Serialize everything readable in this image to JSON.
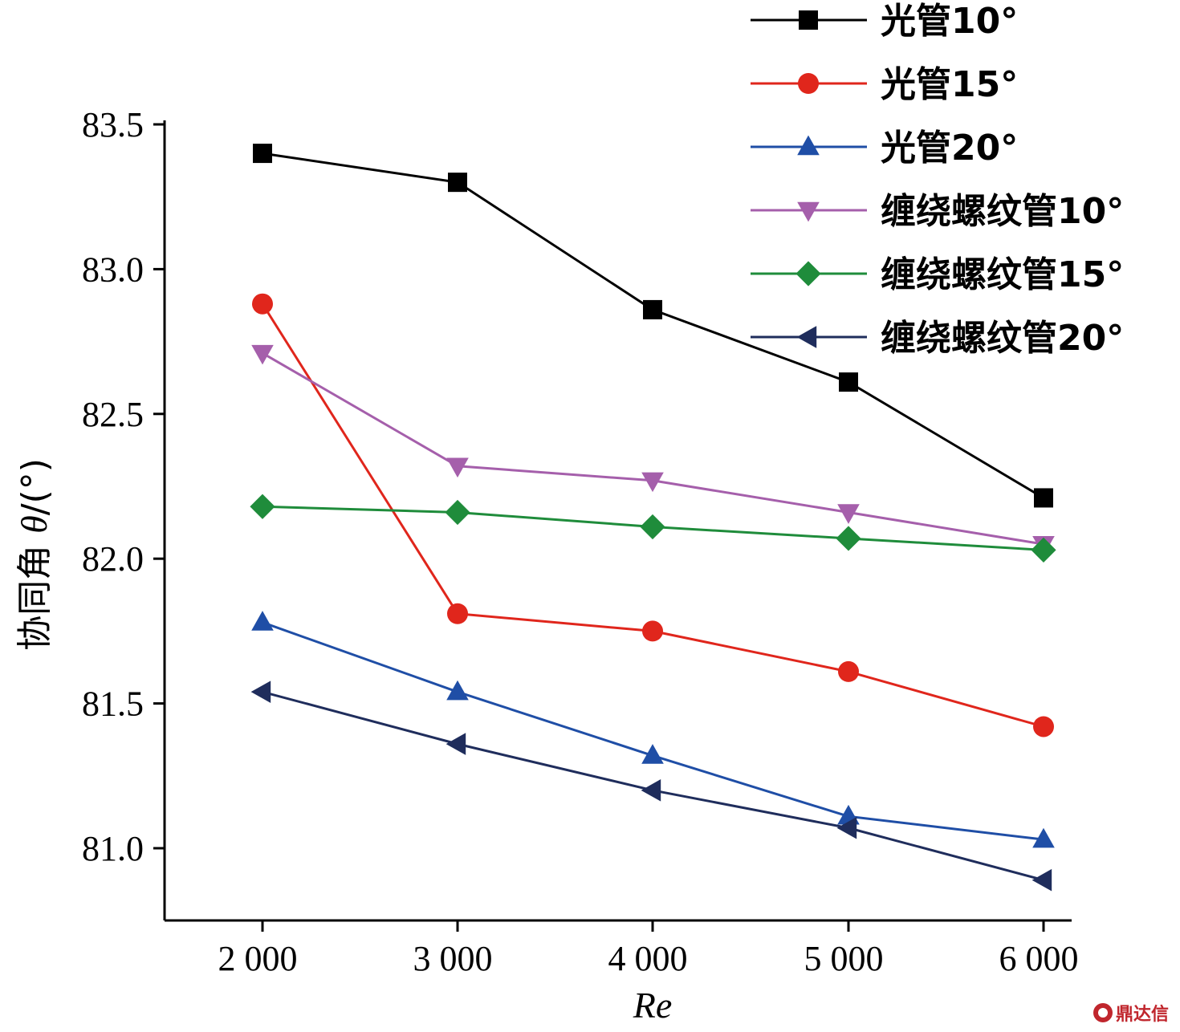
{
  "chart_data": {
    "type": "line",
    "title": "",
    "xlabel": "Re",
    "ylabel_prefix": "协同角 ",
    "ylabel_symbol": "θ",
    "ylabel_suffix": "/(°)",
    "x": [
      2000,
      3000,
      4000,
      5000,
      6000
    ],
    "x_tick_labels": [
      "2 000",
      "3 000",
      "4 000",
      "5 000",
      "6 000"
    ],
    "y_ticks": [
      81.0,
      81.5,
      82.0,
      82.5,
      83.0,
      83.5
    ],
    "y_tick_labels": [
      "81.0",
      "81.5",
      "82.0",
      "82.5",
      "83.0",
      "83.5"
    ],
    "ylim": [
      80.75,
      83.5
    ],
    "legend_position": "top-right",
    "series": [
      {
        "name": "光管10°",
        "color": "#000000",
        "marker": "square",
        "values": [
          83.4,
          83.3,
          82.86,
          82.61,
          82.21
        ]
      },
      {
        "name": "光管15°",
        "color": "#e0261c",
        "marker": "circle",
        "values": [
          82.88,
          81.81,
          81.75,
          81.61,
          81.42
        ]
      },
      {
        "name": "光管20°",
        "color": "#1f4ea6",
        "marker": "triangle-up",
        "values": [
          81.78,
          81.54,
          81.32,
          81.11,
          81.03
        ]
      },
      {
        "name": "缠绕螺纹管10°",
        "color": "#a55fab",
        "marker": "triangle-down",
        "values": [
          82.71,
          82.32,
          82.27,
          82.16,
          82.05
        ]
      },
      {
        "name": "缠绕螺纹管15°",
        "color": "#1f8c3b",
        "marker": "diamond",
        "values": [
          82.18,
          82.16,
          82.11,
          82.07,
          82.03
        ]
      },
      {
        "name": "缠绕螺纹管20°",
        "color": "#1f2d5c",
        "marker": "triangle-left",
        "values": [
          81.54,
          81.36,
          81.2,
          81.07,
          80.89
        ]
      }
    ]
  },
  "watermark": {
    "text": "鼎达信",
    "color": "#c0262d"
  }
}
